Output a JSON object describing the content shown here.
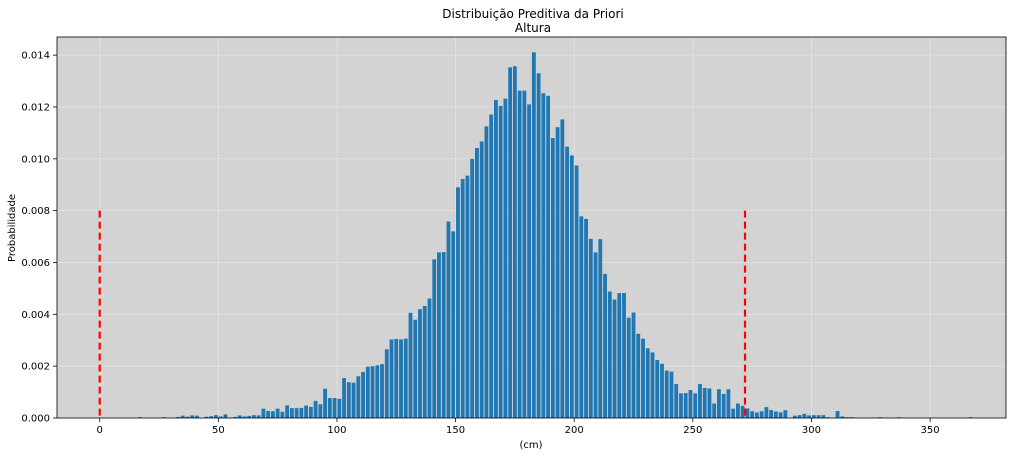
{
  "chart_data": {
    "type": "bar",
    "title": "Distribuição Preditiva da Priori",
    "subtitle": "Altura",
    "xlabel": "(cm)",
    "ylabel": "Probabilidade",
    "xlim": [
      -18,
      382
    ],
    "ylim": [
      0,
      0.0147
    ],
    "xticks": [
      0,
      50,
      100,
      150,
      200,
      250,
      300,
      350
    ],
    "yticks": [
      0.0,
      0.002,
      0.004,
      0.006,
      0.008,
      0.01,
      0.012,
      0.014
    ],
    "ytick_labels": [
      "0.000",
      "0.002",
      "0.004",
      "0.006",
      "0.008",
      "0.010",
      "0.012",
      "0.014"
    ],
    "grid": true,
    "background": "#d3d3d3",
    "bar_color": "#1f77b4",
    "bar_width": 1.6,
    "x": [
      17,
      27,
      33,
      35,
      37,
      39,
      41,
      45,
      47,
      49,
      51,
      53,
      57,
      59,
      61,
      63,
      65,
      67,
      69,
      71,
      73,
      75,
      77,
      79,
      81,
      83,
      85,
      87,
      89,
      91,
      93,
      95,
      97,
      99,
      101,
      103,
      105,
      107,
      109,
      111,
      113,
      115,
      117,
      119,
      121,
      123,
      125,
      127,
      129,
      131,
      133,
      135,
      137,
      139,
      141,
      143,
      145,
      147,
      149,
      151,
      153,
      155,
      157,
      159,
      161,
      163,
      165,
      167,
      169,
      171,
      173,
      175,
      177,
      179,
      181,
      183,
      185,
      187,
      189,
      191,
      193,
      195,
      197,
      199,
      201,
      203,
      205,
      207,
      209,
      211,
      213,
      215,
      217,
      219,
      221,
      223,
      225,
      227,
      229,
      231,
      233,
      235,
      237,
      239,
      241,
      243,
      245,
      247,
      249,
      251,
      253,
      255,
      257,
      259,
      261,
      263,
      265,
      267,
      269,
      271,
      273,
      275,
      277,
      279,
      281,
      283,
      285,
      287,
      289,
      293,
      295,
      297,
      299,
      301,
      303,
      305,
      307,
      311,
      313,
      315,
      317,
      329,
      337,
      367
    ],
    "values": [
      3e-05,
      3e-05,
      4e-05,
      9e-05,
      5e-05,
      0.0001,
      9e-05,
      5e-05,
      7e-05,
      0.00011,
      6e-05,
      0.00014,
      4e-05,
      0.0001,
      6e-05,
      8e-05,
      0.00011,
      0.0001,
      0.00036,
      0.00027,
      0.00026,
      0.00036,
      0.00024,
      0.00049,
      0.00038,
      0.00038,
      0.00039,
      0.00048,
      0.00043,
      0.00066,
      0.00053,
      0.00113,
      0.00077,
      0.00077,
      0.00074,
      0.00154,
      0.00138,
      0.00136,
      0.00161,
      0.00178,
      0.00198,
      0.002,
      0.00203,
      0.00208,
      0.00265,
      0.00303,
      0.00305,
      0.00303,
      0.00306,
      0.00406,
      0.00379,
      0.0042,
      0.00432,
      0.00461,
      0.00612,
      0.00639,
      0.0064,
      0.00758,
      0.0072,
      0.0089,
      0.00922,
      0.00935,
      0.01,
      0.01042,
      0.01067,
      0.01125,
      0.01171,
      0.01227,
      0.01204,
      0.01232,
      0.01353,
      0.01357,
      0.01263,
      0.01263,
      0.0121,
      0.01411,
      0.0133,
      0.01253,
      0.01243,
      0.0108,
      0.01122,
      0.01152,
      0.01047,
      0.01013,
      0.00974,
      0.00778,
      0.00768,
      0.00691,
      0.00639,
      0.0069,
      0.00556,
      0.00488,
      0.00457,
      0.00482,
      0.00482,
      0.00387,
      0.00407,
      0.00325,
      0.00306,
      0.00269,
      0.00253,
      0.00224,
      0.00209,
      0.00183,
      0.00179,
      0.00131,
      0.00095,
      0.00096,
      0.00108,
      0.00095,
      0.00131,
      0.00116,
      0.00114,
      0.00056,
      0.00111,
      0.00093,
      0.00111,
      0.00036,
      0.00056,
      0.00047,
      0.00037,
      0.00026,
      0.00021,
      0.00026,
      0.00042,
      0.00031,
      0.00025,
      0.00022,
      0.0003,
      9e-05,
      0.00011,
      0.00016,
      0.0001,
      0.00011,
      0.00011,
      0.00011,
      3e-05,
      0.00027,
      6e-05,
      3e-05,
      3e-05,
      3e-05,
      3e-05,
      3e-05
    ],
    "reference_lines": [
      {
        "x": 0,
        "y_range": [
          0,
          0.008
        ],
        "color": "#ff0000",
        "style": "dashed"
      },
      {
        "x": 272,
        "y_range": [
          0,
          0.008
        ],
        "color": "#ff0000",
        "style": "dashed"
      }
    ]
  }
}
